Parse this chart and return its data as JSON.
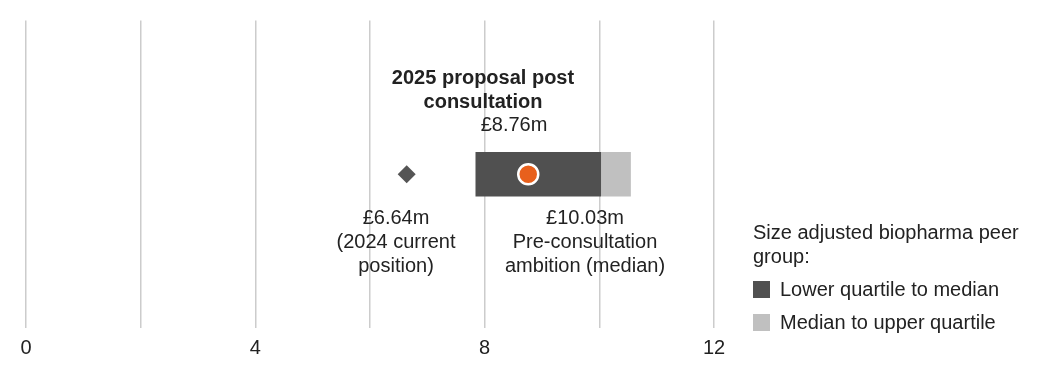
{
  "chart_data": {
    "type": "bar",
    "orientation": "horizontal",
    "categories": [
      null
    ],
    "series": [
      {
        "name": "Lower quartile to median",
        "color": "#505050",
        "base": [
          7.84
        ],
        "values": [
          2.19
        ]
      },
      {
        "name": "Median to upper quartile",
        "color": "#c0c0c0",
        "base": [
          10.03
        ],
        "values": [
          0.52
        ]
      },
      {
        "type": "scatter",
        "marker": "diamond",
        "color": "#555555",
        "values": [
          6.64
        ]
      },
      {
        "type": "scatter",
        "marker": "circle",
        "color": "#e8601c",
        "values": [
          8.76
        ]
      }
    ],
    "xlim": [
      0,
      12
    ],
    "xticks": [
      0,
      {
        "value": 2,
        "label": null
      },
      4,
      {
        "value": 6,
        "label": null
      },
      8,
      {
        "value": 10,
        "label": null
      },
      12
    ],
    "grid": "x",
    "legend": "bottom right",
    "legend_title": "Size adjusted biopharma peer group:",
    "annotations": [
      "2025 proposal post\nconsultation",
      "£8.76m",
      "£6.64m\n(2024 current\nposition)",
      "£10.03m\nPre-consultation\nambition (median)"
    ]
  }
}
